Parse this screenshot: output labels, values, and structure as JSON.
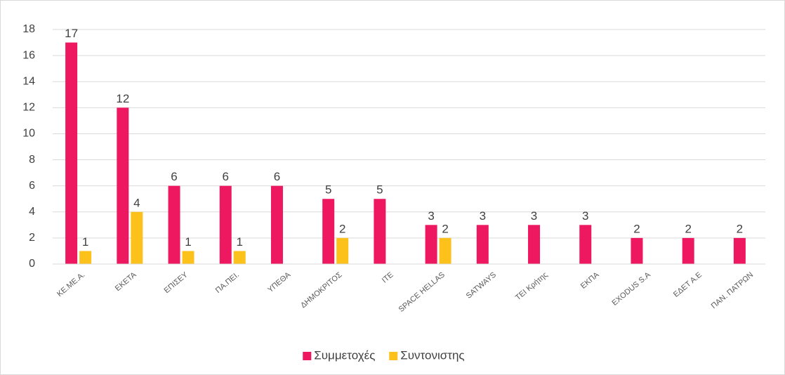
{
  "chart_data": {
    "type": "bar",
    "categories": [
      "ΚΕ.ΜΕ.Α.",
      "ΕΚΕΤΑ",
      "ΕΠΙΣΕΥ",
      "ΠΑ.ΠΕΙ.",
      "ΥΠΕΘΑ",
      "ΔΗΜΟΚΡΙΤΟΣ",
      "ΙΤΕ",
      "SPACE HELLAS",
      "SATWAYS",
      "ΤΕΙ Κρήτης",
      "ΕΚΠΑ",
      "EXODUS S.A",
      "ΕΔΕΤ Α.Ε",
      "ΠΑΝ. ΠΑΤΡΩΝ"
    ],
    "series": [
      {
        "name": "Συμμετοχές",
        "color": "#ee1860",
        "values": [
          17,
          12,
          6,
          6,
          6,
          5,
          5,
          3,
          3,
          3,
          3,
          2,
          2,
          2
        ]
      },
      {
        "name": "Συντονιστης",
        "color": "#fcc21b",
        "values": [
          1,
          4,
          1,
          1,
          null,
          2,
          null,
          2,
          null,
          null,
          null,
          null,
          null,
          null
        ]
      }
    ],
    "ylim": [
      0,
      18
    ],
    "yticks": [
      0,
      2,
      4,
      6,
      8,
      10,
      12,
      14,
      16,
      18
    ],
    "grid": true,
    "legend": "bottom"
  }
}
